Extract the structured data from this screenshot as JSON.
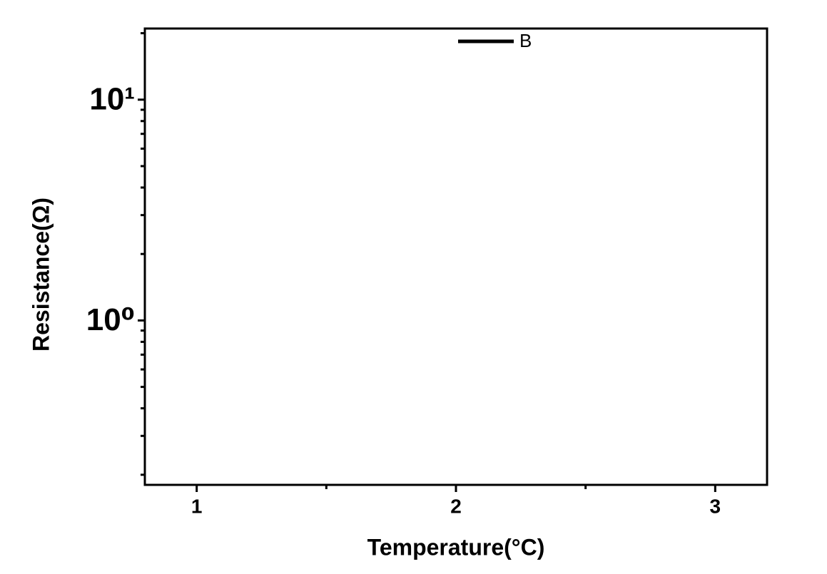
{
  "chart_data": {
    "type": "line",
    "xlabel": "Temperature(°C)",
    "ylabel": "Resistance(Ω)",
    "x": [],
    "series": [
      {
        "name": "B",
        "color": "#000000",
        "values": []
      }
    ],
    "xlim": [
      0.8,
      3.2
    ],
    "xticks": [
      1,
      2,
      3
    ],
    "xminorticks": [
      1.5,
      2.5
    ],
    "ylim": [
      0.18,
      21
    ],
    "yscale": "log",
    "yticks": [
      {
        "value": 1,
        "label": "10⁰"
      },
      {
        "value": 10,
        "label": "10¹"
      }
    ],
    "yminorticks": [
      0.2,
      0.3,
      0.4,
      0.5,
      0.6,
      0.7,
      0.8,
      0.9,
      2,
      3,
      4,
      5,
      6,
      7,
      8,
      9,
      20
    ],
    "grid": false,
    "legend": "top"
  }
}
